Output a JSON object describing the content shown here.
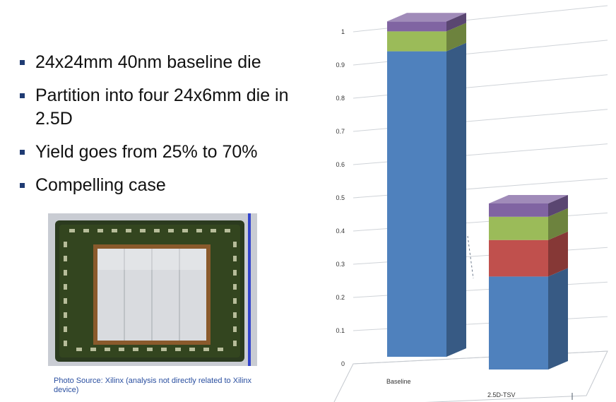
{
  "bullets": [
    "24x24mm 40nm baseline die",
    "Partition into four 24x6mm die in 2.5D",
    "Yield goes from 25% to 70%",
    "Compelling case"
  ],
  "caption": "Photo Source: Xilinx (analysis not directly related to Xilinx device)",
  "chart_data": {
    "type": "bar",
    "stacked": true,
    "three_d": true,
    "categories": [
      "Baseline",
      "2.5D-TSV"
    ],
    "series": [
      {
        "color": "#4f81bd",
        "values": [
          0.92,
          0.28
        ]
      },
      {
        "color": "#c0504d",
        "values": [
          0,
          0.11
        ]
      },
      {
        "color": "#9bbb59",
        "values": [
          0.06,
          0.07
        ]
      },
      {
        "color": "#8064a2",
        "values": [
          0.03,
          0.04
        ]
      }
    ],
    "yticks": [
      "0",
      "0.1",
      "0.2",
      "0.3",
      "0.4",
      "0.5",
      "0.6",
      "0.7",
      "0.8",
      "0.9",
      "1"
    ],
    "ylim": [
      0,
      1
    ],
    "grid": true,
    "legend": "none"
  }
}
